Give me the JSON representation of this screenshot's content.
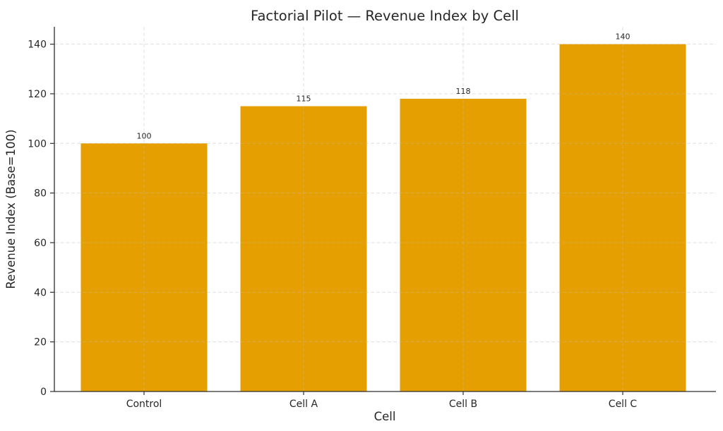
{
  "chart_data": {
    "type": "bar",
    "title": "Factorial Pilot — Revenue Index by Cell",
    "xlabel": "Cell",
    "ylabel": "Revenue Index (Base=100)",
    "categories": [
      "Control",
      "Cell A",
      "Cell B",
      "Cell C"
    ],
    "values": [
      100,
      115,
      118,
      140
    ],
    "bar_labels": [
      "100",
      "115",
      "118",
      "140"
    ],
    "yticks": [
      0,
      20,
      40,
      60,
      80,
      100,
      120,
      140
    ],
    "ytick_labels": [
      "0",
      "20",
      "40",
      "60",
      "80",
      "100",
      "120",
      "140"
    ],
    "ylim": [
      0,
      147
    ],
    "grid": "dashed, both axes, drawn above bars",
    "legend_position": "none",
    "colors": {
      "bar": "#E69F00",
      "grid": "#bbbbbb",
      "spine": "#2e2e2e",
      "text": "#262626"
    }
  }
}
